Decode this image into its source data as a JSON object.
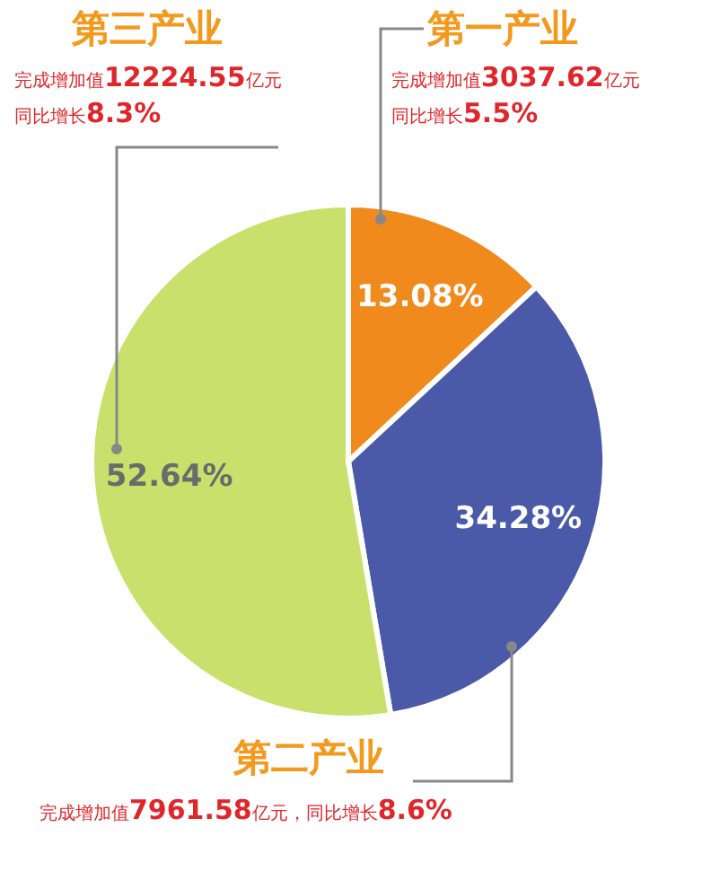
{
  "chart_data": {
    "type": "pie",
    "categories": [
      "第一产业",
      "第二产业",
      "第三产业"
    ],
    "values": [
      13.08,
      34.28,
      52.64
    ],
    "colors": [
      "#f08a1c",
      "#4a59a8",
      "#c9e16c"
    ],
    "value_labels": [
      "13.08%",
      "34.28%",
      "52.64%"
    ],
    "legend": false,
    "annotations": [
      "完成增加值3037.62亿元",
      "同比增长5.5%",
      "完成增加值7961.58亿元，同比增长8.6%",
      "完成增加值12224.55亿元",
      "同比增长8.3%"
    ]
  }
}
